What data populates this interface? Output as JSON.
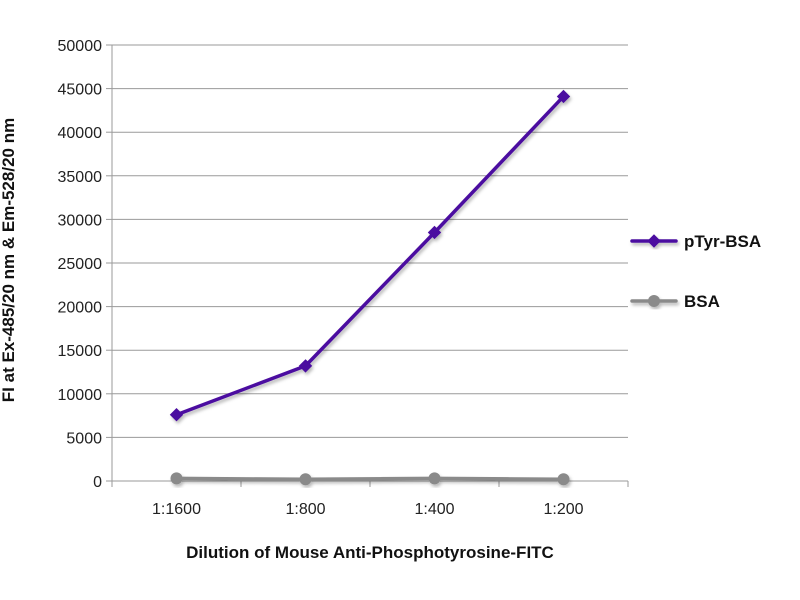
{
  "chart_data": {
    "type": "line",
    "title": "",
    "xlabel": "Dilution of Mouse Anti-Phosphotyrosine-FITC",
    "ylabel": "FI at Ex-485/20 nm & Em-528/20 nm",
    "categories": [
      "1:1600",
      "1:800",
      "1:400",
      "1:200"
    ],
    "ylim": [
      0,
      50000
    ],
    "yticks": [
      0,
      5000,
      10000,
      15000,
      20000,
      25000,
      30000,
      35000,
      40000,
      45000,
      50000
    ],
    "grid": "horizontal",
    "legend_position": "right",
    "series": [
      {
        "name": "pTyr-BSA",
        "values": [
          7600,
          13200,
          28500,
          44100
        ],
        "color": "#4b0fa0",
        "marker": "diamond"
      },
      {
        "name": "BSA",
        "values": [
          300,
          200,
          300,
          200
        ],
        "color": "#8a8a8a",
        "marker": "circle"
      }
    ]
  }
}
